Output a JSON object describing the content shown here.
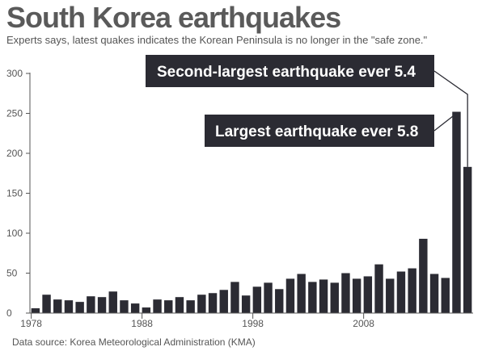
{
  "title": "South Korea earthquakes",
  "subtitle": "Experts says, latest quakes indicates the Korean Peninsula is no longer in the \"safe zone.\"",
  "source": "Data source: Korea Meteorological Administration (KMA)",
  "colors": {
    "bar": "#2b2b33",
    "axis": "#555555",
    "callout": "#2b2b33"
  },
  "chart_data": {
    "type": "bar",
    "x": [
      1978,
      1979,
      1980,
      1981,
      1982,
      1983,
      1984,
      1985,
      1986,
      1987,
      1988,
      1989,
      1990,
      1991,
      1992,
      1993,
      1994,
      1995,
      1996,
      1997,
      1998,
      1999,
      2000,
      2001,
      2002,
      2003,
      2004,
      2005,
      2006,
      2007,
      2008,
      2009,
      2010,
      2011,
      2012,
      2013,
      2014,
      2015,
      2016,
      2017
    ],
    "values": [
      6,
      23,
      17,
      16,
      14,
      21,
      20,
      27,
      16,
      12,
      7,
      17,
      16,
      20,
      16,
      23,
      25,
      29,
      39,
      22,
      33,
      38,
      30,
      43,
      49,
      39,
      42,
      38,
      50,
      43,
      46,
      61,
      43,
      52,
      56,
      93,
      49,
      44,
      252,
      183
    ],
    "xticks": [
      1978,
      1988,
      1998,
      2008
    ],
    "yticks": [
      0,
      50,
      100,
      150,
      200,
      250,
      300
    ],
    "ylim": [
      0,
      300
    ],
    "xlabel": "",
    "ylabel": "",
    "annotations": [
      {
        "text": "Second-largest earthquake ever 5.4",
        "year": 2017
      },
      {
        "text": "Largest earthquake ever 5.8",
        "year": 2016
      }
    ]
  }
}
